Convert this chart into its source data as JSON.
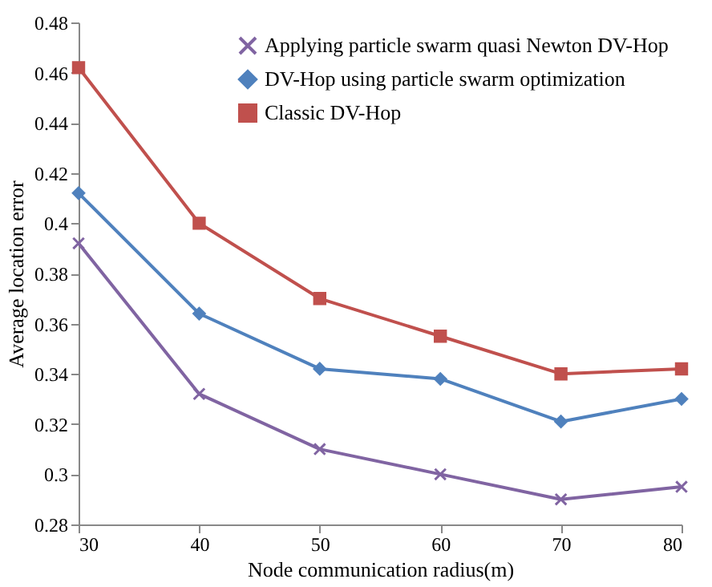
{
  "chart_data": {
    "type": "line",
    "xlabel": "Node communication radius(m)",
    "ylabel": "Average location error",
    "x": [
      30,
      40,
      50,
      60,
      70,
      80
    ],
    "series": [
      {
        "name": "Applying particle swarm quasi Newton DV-Hop",
        "color": "#8064a2",
        "marker": "cross",
        "values": [
          0.392,
          0.332,
          0.31,
          0.3,
          0.29,
          0.295
        ]
      },
      {
        "name": "DV-Hop using particle swarm optimization",
        "color": "#4f81bd",
        "marker": "diamond",
        "values": [
          0.412,
          0.364,
          0.342,
          0.338,
          0.321,
          0.33
        ]
      },
      {
        "name": "Classic DV-Hop",
        "color": "#c0504d",
        "marker": "square",
        "values": [
          0.462,
          0.4,
          0.37,
          0.355,
          0.34,
          0.342
        ]
      }
    ],
    "xlim": [
      30,
      80
    ],
    "xticks": [
      30,
      40,
      50,
      60,
      70,
      80
    ],
    "ylim": [
      0.28,
      0.48
    ],
    "yticks": [
      0.28,
      0.3,
      0.32,
      0.34,
      0.36,
      0.38,
      0.4,
      0.42,
      0.44,
      0.46,
      0.48
    ],
    "legend": "top right",
    "grid": false,
    "line_style": "solid"
  }
}
